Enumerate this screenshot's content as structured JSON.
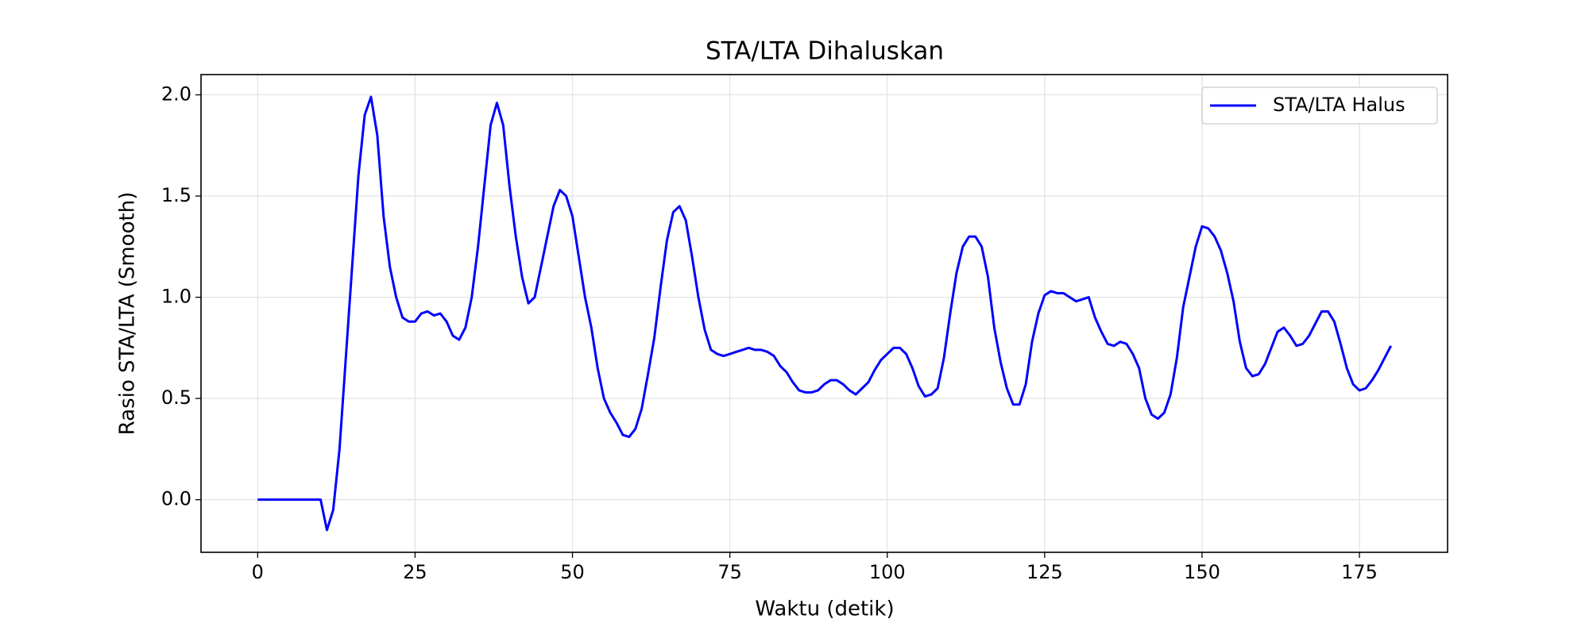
{
  "chart_data": {
    "type": "line",
    "title": "STA/LTA Dihaluskan",
    "xlabel": "Waktu (detik)",
    "ylabel": "Rasio STA/LTA (Smooth)",
    "x": [
      0,
      1,
      2,
      3,
      4,
      5,
      6,
      7,
      8,
      9,
      10,
      11,
      12,
      13,
      14,
      15,
      16,
      17,
      18,
      19,
      20,
      21,
      22,
      23,
      24,
      25,
      26,
      27,
      28,
      29,
      30,
      31,
      32,
      33,
      34,
      35,
      36,
      37,
      38,
      39,
      40,
      41,
      42,
      43,
      44,
      45,
      46,
      47,
      48,
      49,
      50,
      51,
      52,
      53,
      54,
      55,
      56,
      57,
      58,
      59,
      60,
      61,
      62,
      63,
      64,
      65,
      66,
      67,
      68,
      69,
      70,
      71,
      72,
      73,
      74,
      75,
      76,
      77,
      78,
      79,
      80,
      81,
      82,
      83,
      84,
      85,
      86,
      87,
      88,
      89,
      90,
      91,
      92,
      93,
      94,
      95,
      96,
      97,
      98,
      99,
      100,
      101,
      102,
      103,
      104,
      105,
      106,
      107,
      108,
      109,
      110,
      111,
      112,
      113,
      114,
      115,
      116,
      117,
      118,
      119,
      120,
      121,
      122,
      123,
      124,
      125,
      126,
      127,
      128,
      129,
      130,
      131,
      132,
      133,
      134,
      135,
      136,
      137,
      138,
      139,
      140,
      141,
      142,
      143,
      144,
      145,
      146,
      147,
      148,
      149,
      150,
      151,
      152,
      153,
      154,
      155,
      156,
      157,
      158,
      159,
      160,
      161,
      162,
      163,
      164,
      165,
      166,
      167,
      168,
      169,
      170,
      171,
      172,
      173,
      174,
      175,
      176,
      177,
      178,
      179,
      180
    ],
    "series": [
      {
        "name": "STA/LTA Halus",
        "color": "#0000ff",
        "values": [
          0,
          0,
          0,
          0,
          0,
          0,
          0,
          0,
          0,
          0,
          0,
          -0.15,
          -0.05,
          0.25,
          0.7,
          1.15,
          1.6,
          1.9,
          1.99,
          1.8,
          1.4,
          1.15,
          1.0,
          0.9,
          0.88,
          0.88,
          0.92,
          0.93,
          0.91,
          0.92,
          0.88,
          0.81,
          0.79,
          0.85,
          1.0,
          1.25,
          1.55,
          1.85,
          1.96,
          1.85,
          1.55,
          1.3,
          1.1,
          0.97,
          1.0,
          1.15,
          1.3,
          1.45,
          1.53,
          1.5,
          1.4,
          1.2,
          1.0,
          0.85,
          0.65,
          0.5,
          0.43,
          0.38,
          0.32,
          0.31,
          0.35,
          0.45,
          0.62,
          0.8,
          1.05,
          1.28,
          1.42,
          1.45,
          1.38,
          1.2,
          1.0,
          0.84,
          0.74,
          0.72,
          0.71,
          0.72,
          0.73,
          0.74,
          0.75,
          0.74,
          0.74,
          0.73,
          0.71,
          0.66,
          0.63,
          0.58,
          0.54,
          0.53,
          0.53,
          0.54,
          0.57,
          0.59,
          0.59,
          0.57,
          0.54,
          0.52,
          0.55,
          0.58,
          0.64,
          0.69,
          0.72,
          0.75,
          0.75,
          0.72,
          0.65,
          0.56,
          0.51,
          0.52,
          0.55,
          0.7,
          0.92,
          1.12,
          1.25,
          1.3,
          1.3,
          1.25,
          1.1,
          0.85,
          0.68,
          0.55,
          0.47,
          0.47,
          0.57,
          0.78,
          0.92,
          1.01,
          1.03,
          1.02,
          1.02,
          1.0,
          0.98,
          0.99,
          1.0,
          0.9,
          0.83,
          0.77,
          0.76,
          0.78,
          0.77,
          0.72,
          0.65,
          0.5,
          0.42,
          0.4,
          0.43,
          0.52,
          0.7,
          0.95,
          1.1,
          1.25,
          1.35,
          1.34,
          1.3,
          1.23,
          1.12,
          0.98,
          0.78,
          0.65,
          0.61,
          0.62,
          0.67,
          0.75,
          0.83,
          0.85,
          0.81,
          0.76,
          0.77,
          0.81,
          0.87,
          0.93,
          0.93,
          0.88,
          0.77,
          0.65,
          0.57,
          0.54,
          0.55,
          0.59,
          0.64,
          0.7,
          0.76
        ]
      }
    ],
    "xlim": [
      -9,
      189
    ],
    "ylim": [
      -0.26,
      2.1
    ],
    "xticks": [
      0,
      25,
      50,
      75,
      100,
      125,
      150,
      175
    ],
    "yticks": [
      {
        "value": 0,
        "label": "0.0"
      },
      0.5,
      {
        "value": 1,
        "label": "1.0"
      },
      1.5,
      {
        "value": 2,
        "label": "2.0"
      }
    ],
    "grid": true,
    "legend": "upper right"
  }
}
